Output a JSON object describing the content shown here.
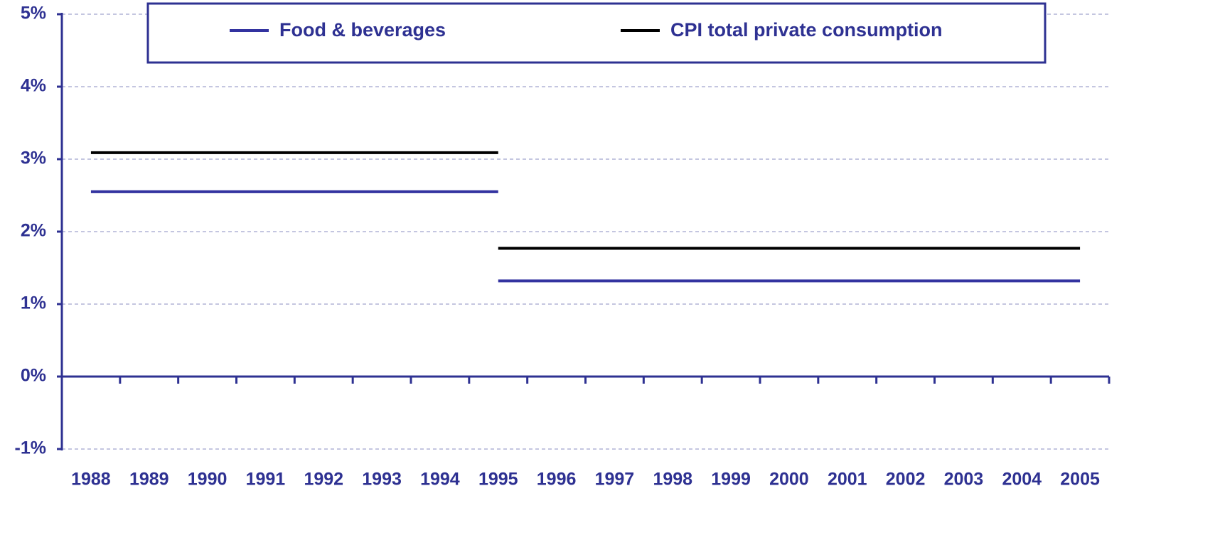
{
  "chart_data": {
    "type": "line",
    "categories": [
      "1988",
      "1989",
      "1990",
      "1991",
      "1992",
      "1993",
      "1994",
      "1995",
      "1996",
      "1997",
      "1998",
      "1999",
      "2000",
      "2001",
      "2002",
      "2003",
      "2004",
      "2005"
    ],
    "series": [
      {
        "name": "Food & beverages",
        "color": "#3333a0",
        "values": [
          2.55,
          2.55,
          2.55,
          2.55,
          2.55,
          2.55,
          2.55,
          2.55,
          null,
          null,
          null,
          null,
          null,
          null,
          null,
          null,
          null,
          null
        ]
      },
      {
        "name": "CPI total private consumption",
        "color": "#000000",
        "values": [
          3.09,
          3.09,
          3.09,
          3.09,
          3.09,
          3.09,
          3.09,
          3.09,
          null,
          null,
          null,
          null,
          null,
          null,
          null,
          null,
          null,
          null
        ]
      },
      {
        "name": "Food & beverages",
        "color": "#3333a0",
        "values": [
          null,
          null,
          null,
          null,
          null,
          null,
          null,
          1.32,
          1.32,
          1.32,
          1.32,
          1.32,
          1.32,
          1.32,
          1.32,
          1.32,
          1.32,
          1.32
        ]
      },
      {
        "name": "CPI total private consumption",
        "color": "#000000",
        "values": [
          null,
          null,
          null,
          null,
          null,
          null,
          null,
          1.77,
          1.77,
          1.77,
          1.77,
          1.77,
          1.77,
          1.77,
          1.77,
          1.77,
          1.77,
          1.77
        ]
      }
    ],
    "ylim": [
      -1,
      5
    ],
    "yticks": [
      {
        "value": -1,
        "label": "-1%"
      },
      {
        "value": 0,
        "label": "0%"
      },
      {
        "value": 1,
        "label": "1%"
      },
      {
        "value": 2,
        "label": "2%"
      },
      {
        "value": 3,
        "label": "3%"
      },
      {
        "value": 4,
        "label": "4%"
      },
      {
        "value": 5,
        "label": "5%"
      }
    ],
    "grid": true,
    "legend": "top"
  }
}
